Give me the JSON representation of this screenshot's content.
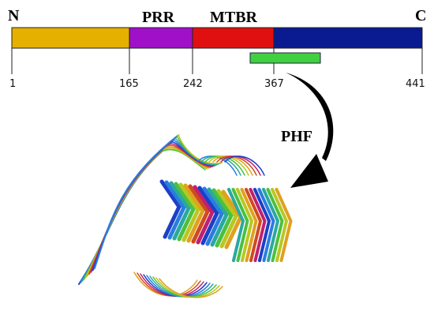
{
  "labels": {
    "n_terminus": "N",
    "c_terminus": "C",
    "prr": "PRR",
    "mtbr": "MTBR",
    "phf": "PHF"
  },
  "domain_bar": {
    "segments": [
      {
        "name": "n-terminal",
        "start": 1,
        "end": 165,
        "color": "#e6b000"
      },
      {
        "name": "prr",
        "start": 165,
        "end": 242,
        "color": "#a010c8"
      },
      {
        "name": "mtbr",
        "start": 242,
        "end": 367,
        "color": "#e01010"
      },
      {
        "name": "c-terminal",
        "start": 367,
        "end": 441,
        "color": "#0a1a90"
      }
    ],
    "ticks": [
      "1",
      "165",
      "242",
      "367",
      "441"
    ]
  },
  "phf_core": {
    "color": "#40d040"
  },
  "arrow": {
    "color": "#000000"
  }
}
